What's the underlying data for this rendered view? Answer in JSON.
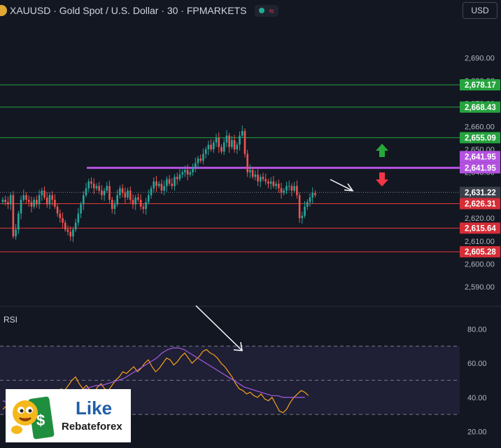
{
  "header": {
    "title": "XAUUSD · Gold Spot / U.S. Dollar · 30 · FPMARKETS",
    "currency": "USD",
    "status_icons": [
      "market-open-dot",
      "wave-icon"
    ]
  },
  "colors": {
    "background": "#131722",
    "bull": "#26a69a",
    "bear": "#ef5350",
    "green_level": "#26a33e",
    "red_level": "#e53935",
    "purple_level": "#b452e0",
    "rsi_line": "#f7a21b",
    "rsi_ma": "#a45be0",
    "arrow_up": "#27a83a",
    "arrow_down": "#f23645"
  },
  "chart_data": [
    {
      "type": "candlestick",
      "symbol": "XAUUSD",
      "timeframe": "30",
      "ylim": [
        2583,
        2706
      ],
      "ticks": [
        "2,590.00",
        "2,600.00",
        "2,610.00",
        "2,620.00",
        "2,630.00",
        "2,640.00",
        "2,650.00",
        "2,660.00",
        "2,670.00",
        "2,680.00",
        "2,690.00"
      ],
      "levels": [
        {
          "value": 2678.17,
          "label": "2,678.17",
          "kind": "resistance",
          "color": "green"
        },
        {
          "value": 2668.43,
          "label": "2,668.43",
          "kind": "resistance",
          "color": "green"
        },
        {
          "value": 2655.09,
          "label": "2,655.09",
          "kind": "resistance",
          "color": "green"
        },
        {
          "value": 2641.95,
          "label": "2,641.95",
          "kind": "pivot",
          "color": "purple"
        },
        {
          "value": 2626.31,
          "label": "2,626.31",
          "kind": "support",
          "color": "red"
        },
        {
          "value": 2615.64,
          "label": "2,615.64",
          "kind": "support",
          "color": "red"
        },
        {
          "value": 2605.28,
          "label": "2,605.28",
          "kind": "support",
          "color": "red"
        }
      ],
      "pivot_labels": [
        "2,641.95",
        "2,641.95"
      ],
      "current_price": {
        "value": 2631.22,
        "label": "2,631.22"
      },
      "closes": [
        2628,
        2627,
        2626,
        2630,
        2612,
        2615,
        2622,
        2628,
        2630,
        2628,
        2627,
        2625,
        2628,
        2626,
        2630,
        2632,
        2629,
        2626,
        2630,
        2628,
        2625,
        2622,
        2620,
        2618,
        2615,
        2614,
        2612,
        2615,
        2618,
        2622,
        2626,
        2630,
        2633,
        2636,
        2635,
        2633,
        2634,
        2632,
        2630,
        2632,
        2634,
        2628,
        2624,
        2626,
        2630,
        2633,
        2631,
        2629,
        2632,
        2628,
        2626,
        2629,
        2628,
        2625,
        2624,
        2627,
        2630,
        2633,
        2636,
        2634,
        2635,
        2632,
        2634,
        2637,
        2635,
        2634,
        2638,
        2637,
        2639,
        2640,
        2641,
        2639,
        2640,
        2642,
        2644,
        2646,
        2645,
        2648,
        2650,
        2652,
        2650,
        2653,
        2655,
        2651,
        2649,
        2653,
        2656,
        2651,
        2654,
        2650,
        2652,
        2656,
        2658,
        2648,
        2640,
        2641,
        2638,
        2639,
        2636,
        2638,
        2637,
        2636,
        2635,
        2636,
        2634,
        2635,
        2633,
        2631,
        2632,
        2634,
        2634,
        2632,
        2634,
        2630,
        2620,
        2621,
        2625,
        2627,
        2629,
        2631,
        2630
      ],
      "annotations": [
        "arrow-up-green",
        "arrow-down-red",
        "white-trend-arrow"
      ]
    },
    {
      "type": "line",
      "name": "RSI",
      "ylim": [
        14,
        88
      ],
      "ticks": [
        "20.00",
        "40.00",
        "60.00",
        "80.00"
      ],
      "band": [
        30,
        50,
        70
      ],
      "values": [
        33,
        35,
        31,
        34,
        36,
        33,
        35,
        38,
        40,
        36,
        35,
        37,
        40,
        42,
        39,
        41,
        45,
        44,
        47,
        50,
        52,
        48,
        45,
        47,
        44,
        42,
        46,
        48,
        45,
        44,
        47,
        50,
        52,
        55,
        54,
        56,
        58,
        55,
        57,
        60,
        62,
        58,
        55,
        57,
        60,
        63,
        62,
        59,
        61,
        64,
        66,
        63,
        60,
        62,
        64,
        67,
        68,
        66,
        65,
        63,
        60,
        58,
        55,
        52,
        48,
        45,
        44,
        42,
        43,
        41,
        40,
        42,
        39,
        38,
        40,
        36,
        32,
        31,
        33,
        37,
        40,
        42,
        44,
        43,
        41
      ],
      "ma_values": [
        38,
        37,
        36,
        36,
        36,
        36,
        37,
        37,
        38,
        39,
        40,
        41,
        42,
        43,
        44,
        45,
        46,
        47,
        47,
        48,
        49,
        50,
        51,
        53,
        55,
        57,
        59,
        61,
        63,
        66,
        68,
        69,
        69,
        68,
        66,
        64,
        62,
        60,
        58,
        56,
        54,
        52,
        50,
        48,
        46,
        45,
        44,
        43,
        42,
        41,
        41,
        40,
        40,
        40,
        40,
        40
      ],
      "annotations": [
        "white-divergence-arrow"
      ]
    }
  ],
  "rsi_panel": {
    "label": "RSI"
  },
  "logo": {
    "line1": "Like",
    "line2": "Rebateforex"
  }
}
